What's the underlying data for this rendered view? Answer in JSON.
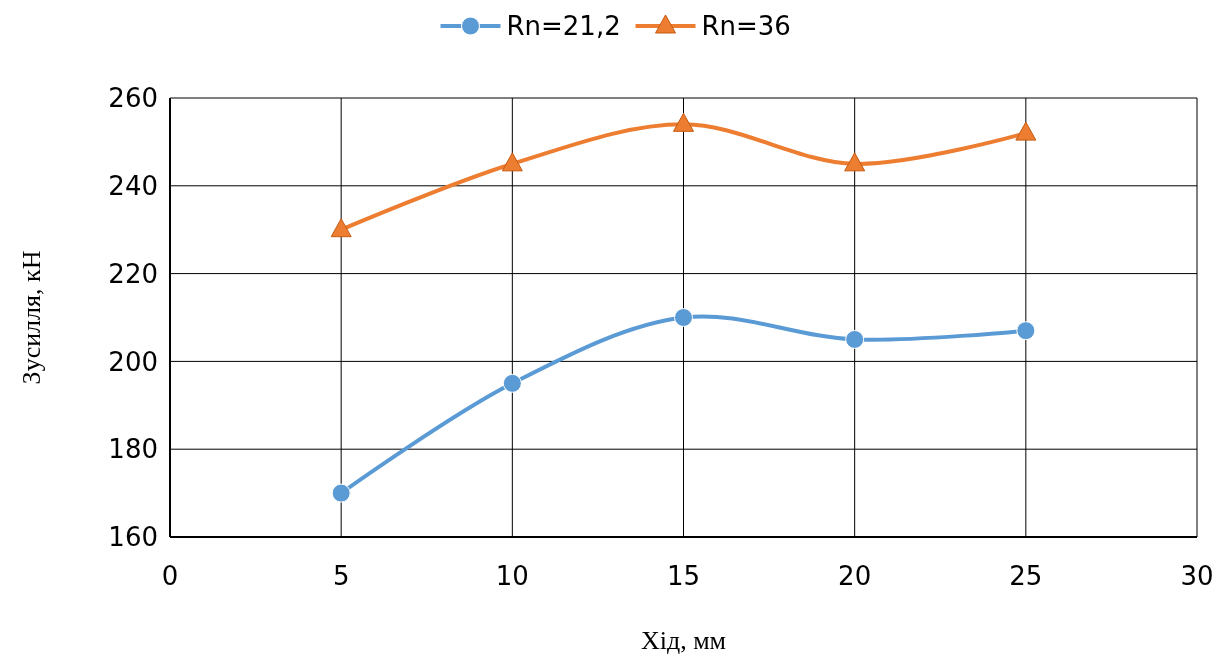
{
  "chart_data": {
    "type": "line",
    "xlabel": "Хід, мм",
    "ylabel": "Зусилля, кН",
    "x": [
      5,
      10,
      15,
      20,
      25
    ],
    "series": [
      {
        "name": "Rn=21,2",
        "color": "#5b9bd5",
        "marker": "circle",
        "values": [
          170,
          195,
          210,
          205,
          207
        ]
      },
      {
        "name": "Rn=36",
        "color": "#ed7d31",
        "marker": "triangle",
        "values": [
          230,
          245,
          254,
          245,
          252
        ]
      }
    ],
    "xlim": [
      0,
      30
    ],
    "xticks": [
      0,
      5,
      10,
      15,
      20,
      25,
      30
    ],
    "ylim": [
      160,
      260
    ],
    "yticks": [
      160,
      180,
      200,
      220,
      240,
      260
    ],
    "grid": true,
    "legend": "top"
  }
}
